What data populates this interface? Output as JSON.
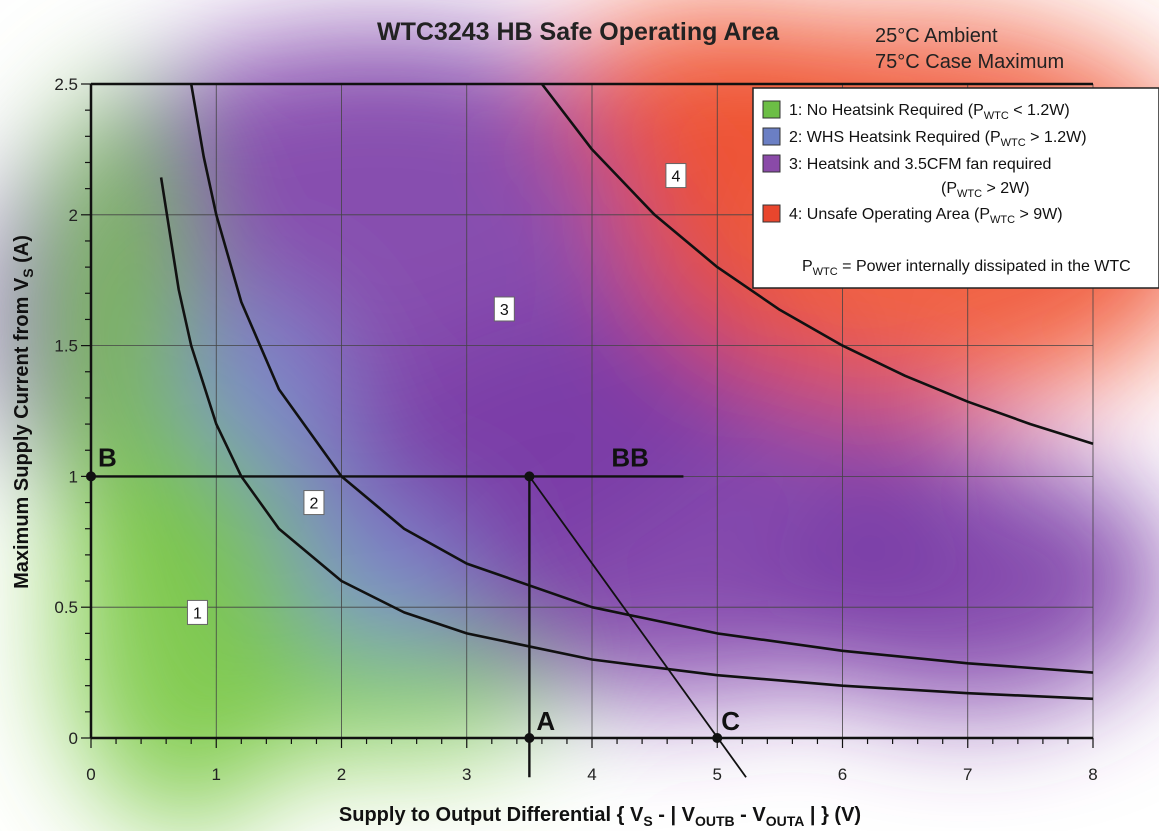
{
  "chart_data": {
    "type": "line",
    "title": "WTC3243 HB Safe Operating Area",
    "conditions": [
      "25°C Ambient",
      "75°C Case Maximum"
    ],
    "xlabel": {
      "main": "Supply to Output Differential { V",
      "s1": "S",
      "m1": " - | V",
      "s2": "OUTB",
      "m2": " - V",
      "s3": "OUTA",
      "end": " | } (V)"
    },
    "ylabel": {
      "main": "Maximum Supply Current from V",
      "sub": "S",
      "end": " (A)"
    },
    "xlim": [
      0,
      8
    ],
    "ylim": [
      0,
      2.5
    ],
    "x_ticks": [
      0,
      1,
      2,
      3,
      4,
      5,
      6,
      7,
      8
    ],
    "x_tick_labels": [
      "0",
      "1",
      "2",
      "3",
      "4",
      "5",
      "6",
      "7",
      "8"
    ],
    "y_ticks": [
      0,
      0.5,
      1,
      1.5,
      2,
      2.5
    ],
    "y_tick_labels": [
      "0",
      "0.5",
      "1",
      "1.5",
      "2",
      "2.5"
    ],
    "grid": true,
    "curves": [
      {
        "power_w": 1.2,
        "x": [
          0.56,
          0.7,
          0.8,
          1.0,
          1.2,
          1.5,
          2.0,
          2.5,
          3.0,
          4.0,
          5.0,
          6.0,
          7.0,
          8.0
        ]
      },
      {
        "power_w": 2,
        "x": [
          0.8,
          0.9,
          1.0,
          1.2,
          1.5,
          2.0,
          2.5,
          3.0,
          4.0,
          5.0,
          6.0,
          7.0,
          8.0
        ]
      },
      {
        "power_w": 9,
        "x": [
          3.6,
          4.0,
          4.5,
          5.0,
          5.5,
          6.0,
          6.5,
          7.0,
          7.5,
          8.0
        ]
      }
    ],
    "regions": [
      {
        "id": "1",
        "label": "1",
        "color": "#7ac943",
        "x": 0.85,
        "y": 0.48
      },
      {
        "id": "2",
        "label": "2",
        "color": "#7b8ed0",
        "x": 1.78,
        "y": 0.9
      },
      {
        "id": "3",
        "label": "3",
        "color": "#7a3ca6",
        "x": 3.3,
        "y": 1.64
      },
      {
        "id": "4",
        "label": "4",
        "color": "#ef5130",
        "x": 4.67,
        "y": 2.15
      }
    ],
    "legend": {
      "position": "top-right",
      "items": [
        {
          "color": "#6cbe45",
          "label": "1: No Heatsink Required (P",
          "sub": "WTC",
          "end": " < 1.2W)"
        },
        {
          "color": "#6b7fc4",
          "label": "2: WHS Heatsink Required (P",
          "sub": "WTC",
          "end": " > 1.2W)"
        },
        {
          "color": "#8a4aa8",
          "label": "3: Heatsink and 3.5CFM fan required",
          "sub": "",
          "end": ""
        },
        {
          "color": "#e9462d",
          "label": "4: Unsafe Operating Area (P",
          "sub": "WTC",
          "end": " > 9W)"
        }
      ],
      "continuation": {
        "pre": "(P",
        "sub": "WTC",
        "end": " > 2W)"
      },
      "note": {
        "pre": "P",
        "sub": "WTC",
        "end": " = Power internally dissipated in the WTC"
      }
    },
    "annotations": {
      "points": [
        {
          "label": "B",
          "x": 0,
          "y": 1
        },
        {
          "label": "BB",
          "x": 3.5,
          "y": 1
        },
        {
          "label": "A",
          "x": 3.5,
          "y": 0
        },
        {
          "label": "C",
          "x": 5,
          "y": 0
        }
      ],
      "segments": [
        {
          "name": "load-line-horizontal",
          "from": [
            0,
            1
          ],
          "to": [
            4.73,
            1
          ]
        },
        {
          "name": "load-line-vertical",
          "from": [
            3.5,
            1
          ],
          "to": [
            3.5,
            -0.15
          ]
        },
        {
          "name": "load-line-diagonal",
          "from": [
            3.5,
            1
          ],
          "to": [
            5.23,
            -0.15
          ]
        }
      ]
    }
  }
}
